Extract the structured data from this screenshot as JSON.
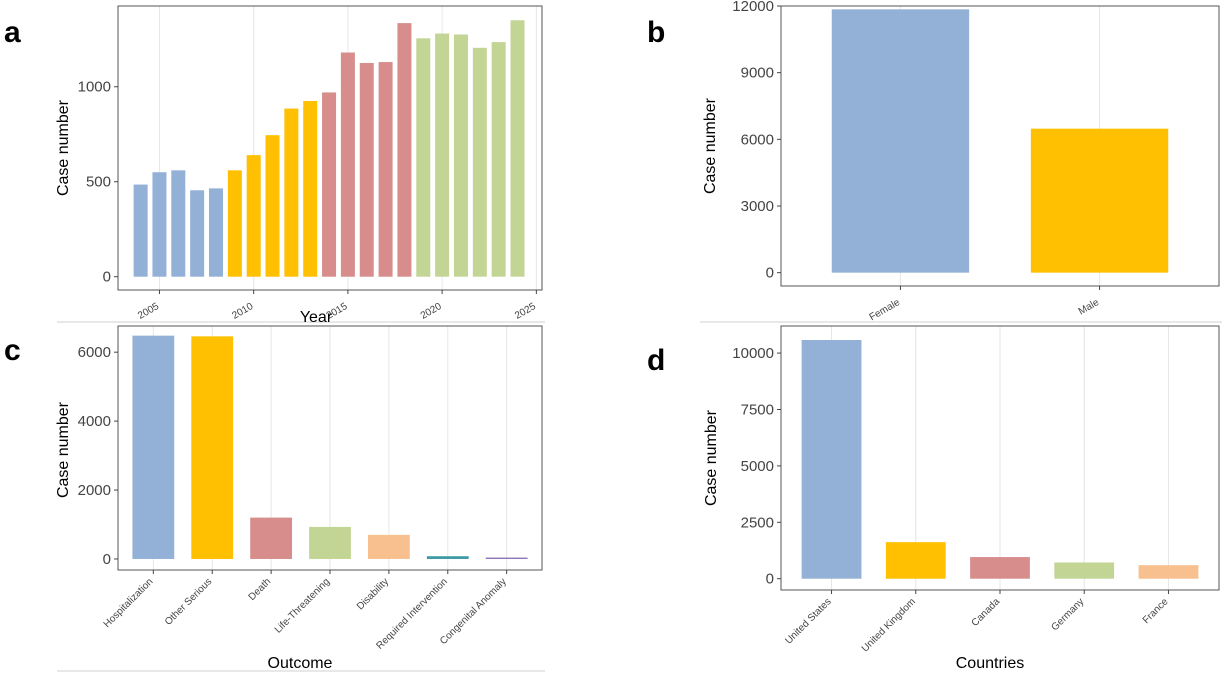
{
  "chart_data": [
    {
      "panel": "a",
      "type": "bar",
      "xlabel": "Year",
      "ylabel": "Case number",
      "x": [
        2004,
        2005,
        2006,
        2007,
        2008,
        2009,
        2010,
        2011,
        2012,
        2013,
        2014,
        2015,
        2016,
        2017,
        2018,
        2019,
        2020,
        2021,
        2022,
        2023,
        2024
      ],
      "values": [
        485,
        550,
        560,
        455,
        465,
        560,
        640,
        745,
        885,
        925,
        970,
        1180,
        1125,
        1130,
        1335,
        1255,
        1280,
        1275,
        1205,
        1235,
        1350
      ],
      "group_colors": [
        "#93b1d7",
        "#93b1d7",
        "#93b1d7",
        "#93b1d7",
        "#93b1d7",
        "#fec000",
        "#fec000",
        "#fec000",
        "#fec000",
        "#fec000",
        "#d68d8c",
        "#d68d8c",
        "#d68d8c",
        "#d68d8c",
        "#d68d8c",
        "#c2d595",
        "#c2d595",
        "#c2d595",
        "#c2d595",
        "#c2d595",
        "#c2d595"
      ],
      "xticks": [
        "2005",
        "2010",
        "2015",
        "2020",
        "2025"
      ],
      "xtick_values": [
        2005,
        2010,
        2015,
        2020,
        2025
      ],
      "xlim": [
        2002.8,
        2025.3
      ],
      "yticks": [
        "0",
        "500",
        "1000"
      ],
      "ytick_values": [
        0,
        500,
        1000
      ],
      "ylim": [
        -70,
        1425
      ],
      "grid": true
    },
    {
      "panel": "b",
      "type": "bar",
      "xlabel": "",
      "ylabel": "Case number",
      "categories": [
        "Female",
        "Male"
      ],
      "values": [
        11850,
        6480
      ],
      "colors": [
        "#93b1d7",
        "#fec000"
      ],
      "yticks": [
        "0",
        "3000",
        "6000",
        "9000",
        "12000"
      ],
      "ytick_values": [
        0,
        3000,
        6000,
        9000,
        12000
      ],
      "ylim": [
        -600,
        12000
      ],
      "grid": true
    },
    {
      "panel": "c",
      "type": "bar",
      "xlabel": "Outcome",
      "ylabel": "Case number",
      "categories": [
        "Hospitalization",
        "Other Serious",
        "Death",
        "Life-Threatening",
        "Disability",
        "Required Intervention",
        "Congenital Anomaly"
      ],
      "values": [
        6480,
        6460,
        1200,
        930,
        700,
        80,
        40
      ],
      "colors": [
        "#93b1d7",
        "#fec000",
        "#d68d8c",
        "#c2d595",
        "#f9c08f",
        "#3b9aa3",
        "#8e72b5"
      ],
      "yticks": [
        "0",
        "2000",
        "4000",
        "6000"
      ],
      "ytick_values": [
        0,
        2000,
        4000,
        6000
      ],
      "ylim": [
        -320,
        6760
      ],
      "grid": true
    },
    {
      "panel": "d",
      "type": "bar",
      "xlabel": "Countries",
      "ylabel": "Case number",
      "categories": [
        "United States",
        "United Kingdom",
        "Canada",
        "Germany",
        "France"
      ],
      "values": [
        10580,
        1620,
        960,
        720,
        600
      ],
      "colors": [
        "#93b1d7",
        "#fec000",
        "#d68d8c",
        "#c2d595",
        "#f9c08f"
      ],
      "yticks": [
        "0",
        "2500",
        "5000",
        "7500",
        "10000"
      ],
      "ytick_values": [
        0,
        2500,
        5000,
        7500,
        10000
      ],
      "ylim": [
        -500,
        11200
      ],
      "grid": true
    }
  ]
}
